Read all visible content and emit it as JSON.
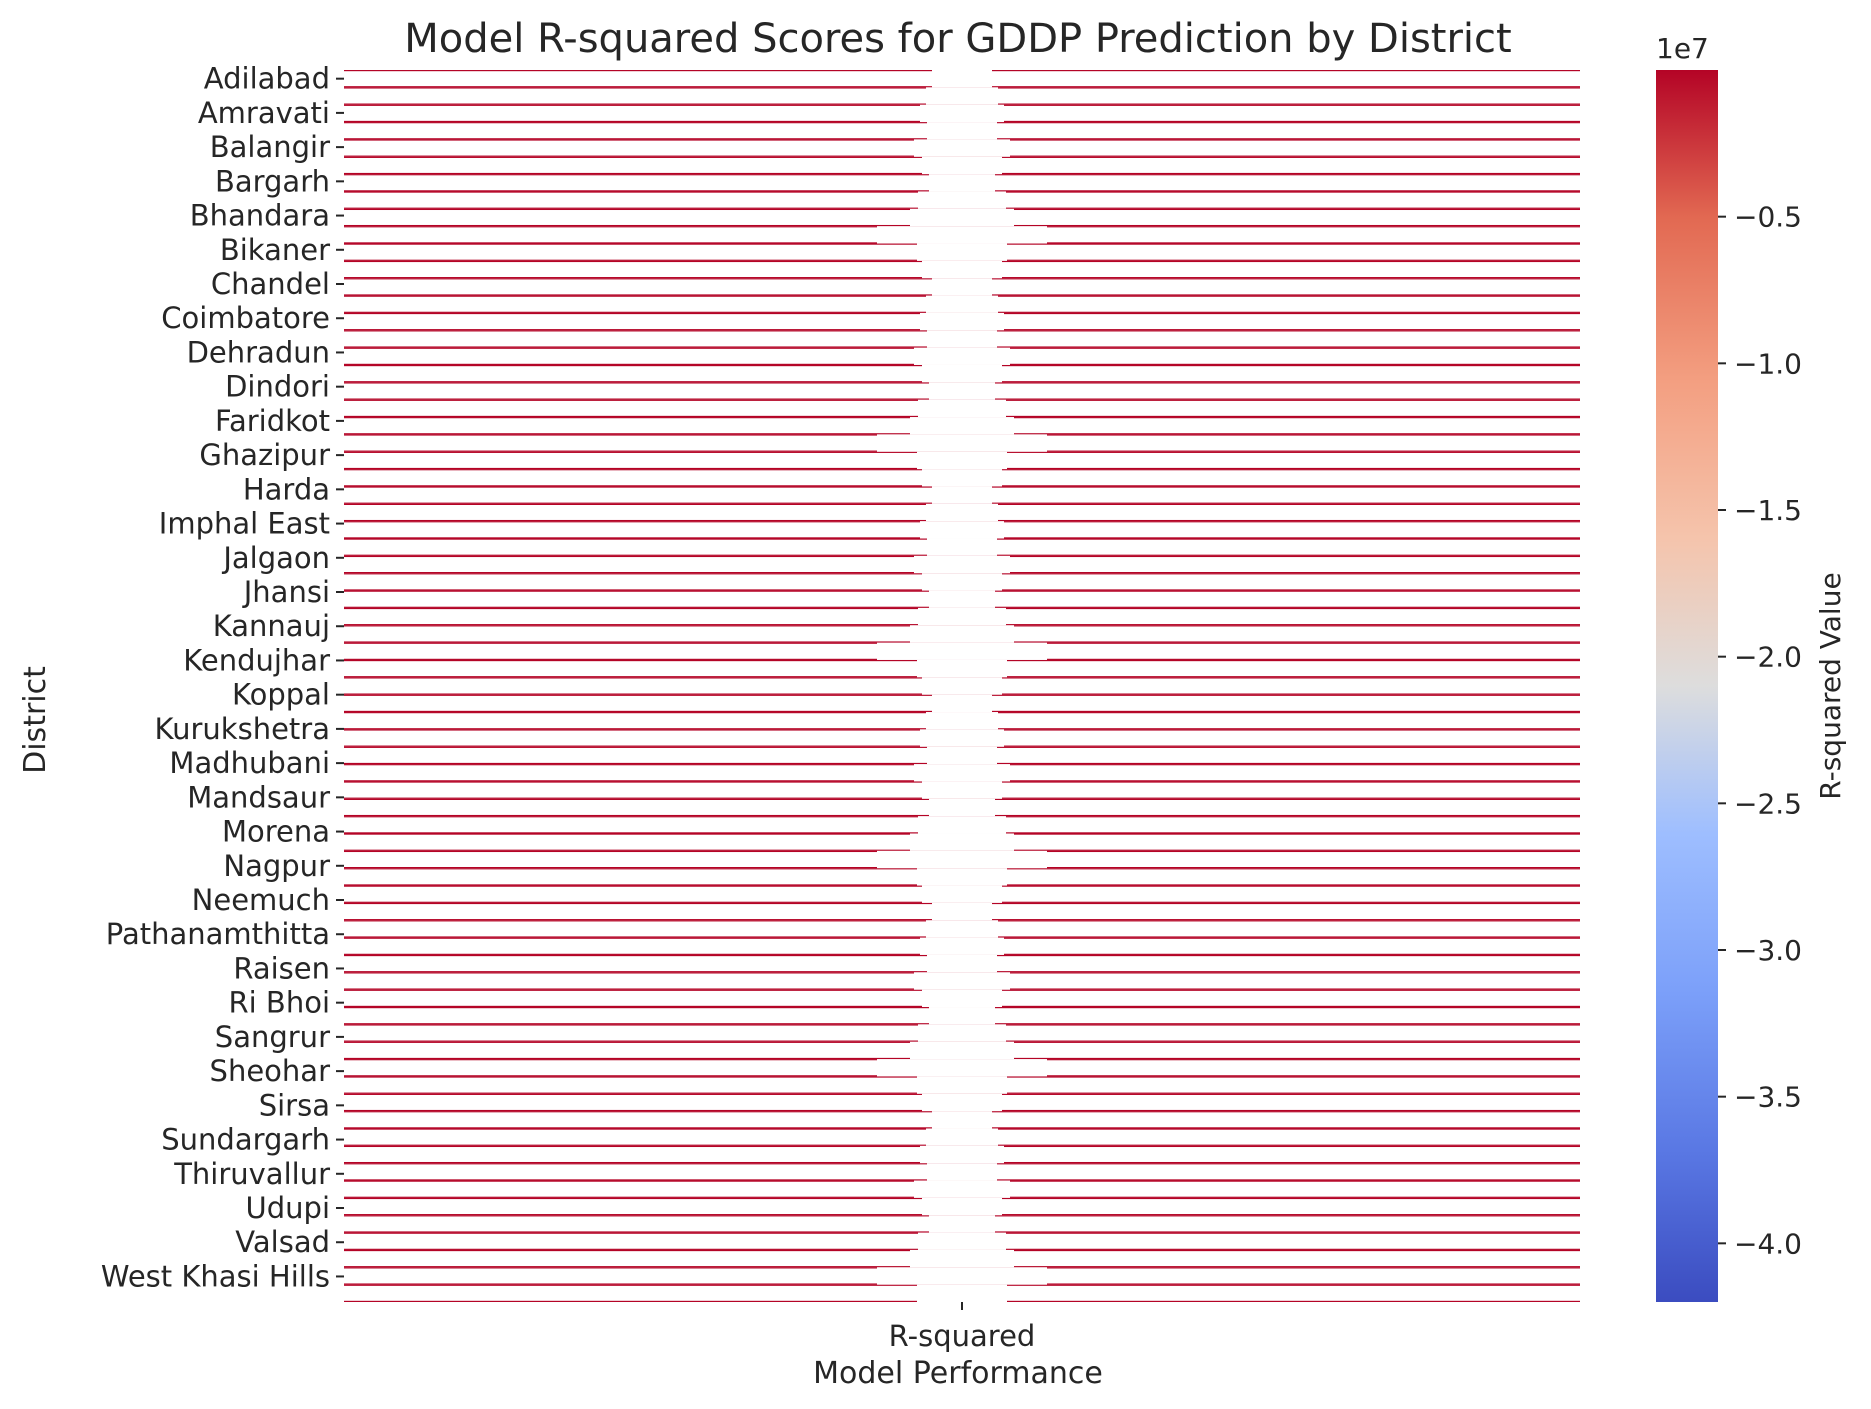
{
  "chart_data": {
    "type": "heatmap",
    "title": "Model R-squared Scores for GDDP Prediction by District",
    "xlabel": "Model Performance",
    "ylabel": "District",
    "columns": [
      "R-squared"
    ],
    "y_tick_labels": [
      "Adilabad",
      "Amravati",
      "Balangir",
      "Bargarh",
      "Bhandara",
      "Bikaner",
      "Chandel",
      "Coimbatore",
      "Dehradun",
      "Dindori",
      "Faridkot",
      "Ghazipur",
      "Harda",
      "Imphal East",
      "Jalgaon",
      "Jhansi",
      "Kannauj",
      "Kendujhar",
      "Koppal",
      "Kurukshetra",
      "Madhubani",
      "Mandsaur",
      "Morena",
      "Nagpur",
      "Neemuch",
      "Pathanamthitta",
      "Raisen",
      "Ri Bhoi",
      "Sangrur",
      "Sheohar",
      "Sirsa",
      "Sundargarh",
      "Thiruvallur",
      "Udupi",
      "Valsad",
      "West Khasi Hills"
    ],
    "row_count": 71,
    "cell_value_approx": 0,
    "colorbar": {
      "label": "R-squared Value",
      "offset_text": "1e7",
      "range": [
        -4.2,
        0
      ],
      "ticks": [
        -0.5,
        -1.0,
        -1.5,
        -2.0,
        -2.5,
        -3.0,
        -3.5,
        -4.0
      ],
      "tick_labels": [
        "−0.5",
        "−1.0",
        "−1.5",
        "−2.0",
        "−2.5",
        "−3.0",
        "−3.5",
        "−4.0"
      ],
      "colormap": "coolwarm",
      "color_low": "#3b4cc0",
      "color_mid": "#dddddd",
      "color_high": "#b40426"
    },
    "grid": false
  }
}
